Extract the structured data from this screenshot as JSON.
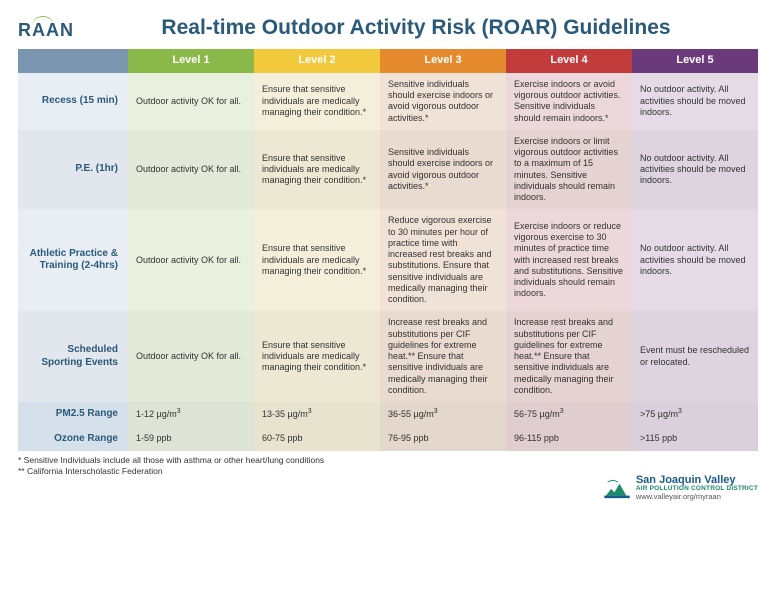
{
  "logo_text": "RAAN",
  "title": "Real-time Outdoor Activity Risk (ROAR) Guidelines",
  "levels": [
    {
      "label": "Level 1",
      "header_bg": "#8ab94a",
      "col_bg": "#eaf0e0"
    },
    {
      "label": "Level 2",
      "header_bg": "#f2c83c",
      "col_bg": "#f4efda"
    },
    {
      "label": "Level 3",
      "header_bg": "#e68a2e",
      "col_bg": "#f0e2d6"
    },
    {
      "label": "Level 4",
      "header_bg": "#c23b3b",
      "col_bg": "#ecd8da"
    },
    {
      "label": "Level 5",
      "header_bg": "#6a3a7a",
      "col_bg": "#e4dbe7"
    }
  ],
  "rows": [
    {
      "label": "Recess (15 min)",
      "cells": [
        "Outdoor activity OK for all.",
        "Ensure that sensitive individuals are medically managing their condition.*",
        "Sensitive individuals should exercise indoors or avoid vigorous outdoor activities.*",
        "Exercise indoors or avoid vigorous outdoor activities. Sensitive individuals should remain indoors.*",
        "No outdoor activity. All activities should be moved indoors."
      ]
    },
    {
      "label": "P.E. (1hr)",
      "cells": [
        "Outdoor activity OK for all.",
        "Ensure that sensitive individuals are medically managing their condition.*",
        "Sensitive individuals should exercise indoors or avoid vigorous outdoor activities.*",
        "Exercise indoors or limit vigorous outdoor activities to a maximum of 15 minutes. Sensitive individuals should remain indoors.",
        "No outdoor activity. All activities should be moved indoors."
      ]
    },
    {
      "label": "Athletic Practice & Training (2-4hrs)",
      "cells": [
        "Outdoor activity OK for all.",
        "Ensure that sensitive individuals are medically managing their condition.*",
        "Reduce vigorous exercise to 30 minutes per hour of practice time with increased rest breaks and substitutions. Ensure that sensitive individuals are medically managing their condition.",
        "Exercise indoors or reduce vigorous exercise to 30 minutes of practice time with increased rest breaks and substitutions. Sensitive individuals should remain indoors.",
        "No outdoor activity. All activities should be moved indoors."
      ]
    },
    {
      "label": "Scheduled Sporting Events",
      "cells": [
        "Outdoor activity OK for all.",
        "Ensure that sensitive individuals are medically managing their condition.*",
        "Increase rest breaks and substitutions per CIF guidelines for extreme heat.** Ensure that sensitive individuals are medically managing their condition.",
        "Increase rest breaks and substitutions per CIF guidelines for extreme heat.** Ensure that sensitive individuals are medically managing their condition.",
        "Event must be rescheduled or relocated."
      ]
    }
  ],
  "range_rows": [
    {
      "label": "PM2.5 Range",
      "cells": [
        "1-12 µg/m³",
        "13-35 µg/m³",
        "36-55 µg/m³",
        "56-75 µg/m³",
        ">75 µg/m³"
      ]
    },
    {
      "label": "Ozone Range",
      "cells": [
        "1-59 ppb",
        "60-75 ppb",
        "76-95 ppb",
        "96-115 ppb",
        ">115 ppb"
      ]
    }
  ],
  "footnotes": [
    "* Sensitive Individuals include all those with asthma or other heart/lung conditions",
    "** California Interscholastic Federation"
  ],
  "footer": {
    "org1": "San Joaquin Valley",
    "org2": "AIR POLLUTION CONTROL DISTRICT",
    "url": "www.valleyair.org/myraan"
  },
  "colors": {
    "rowhead_bg": "#e8eef4",
    "rowhead_text": "#2a5a7a",
    "corner_bg": "#7a95b0",
    "alt_row_tint": "rgba(0,0,0,0.035)"
  },
  "col_widths": {
    "rowhead": "110px",
    "level": "126px"
  }
}
